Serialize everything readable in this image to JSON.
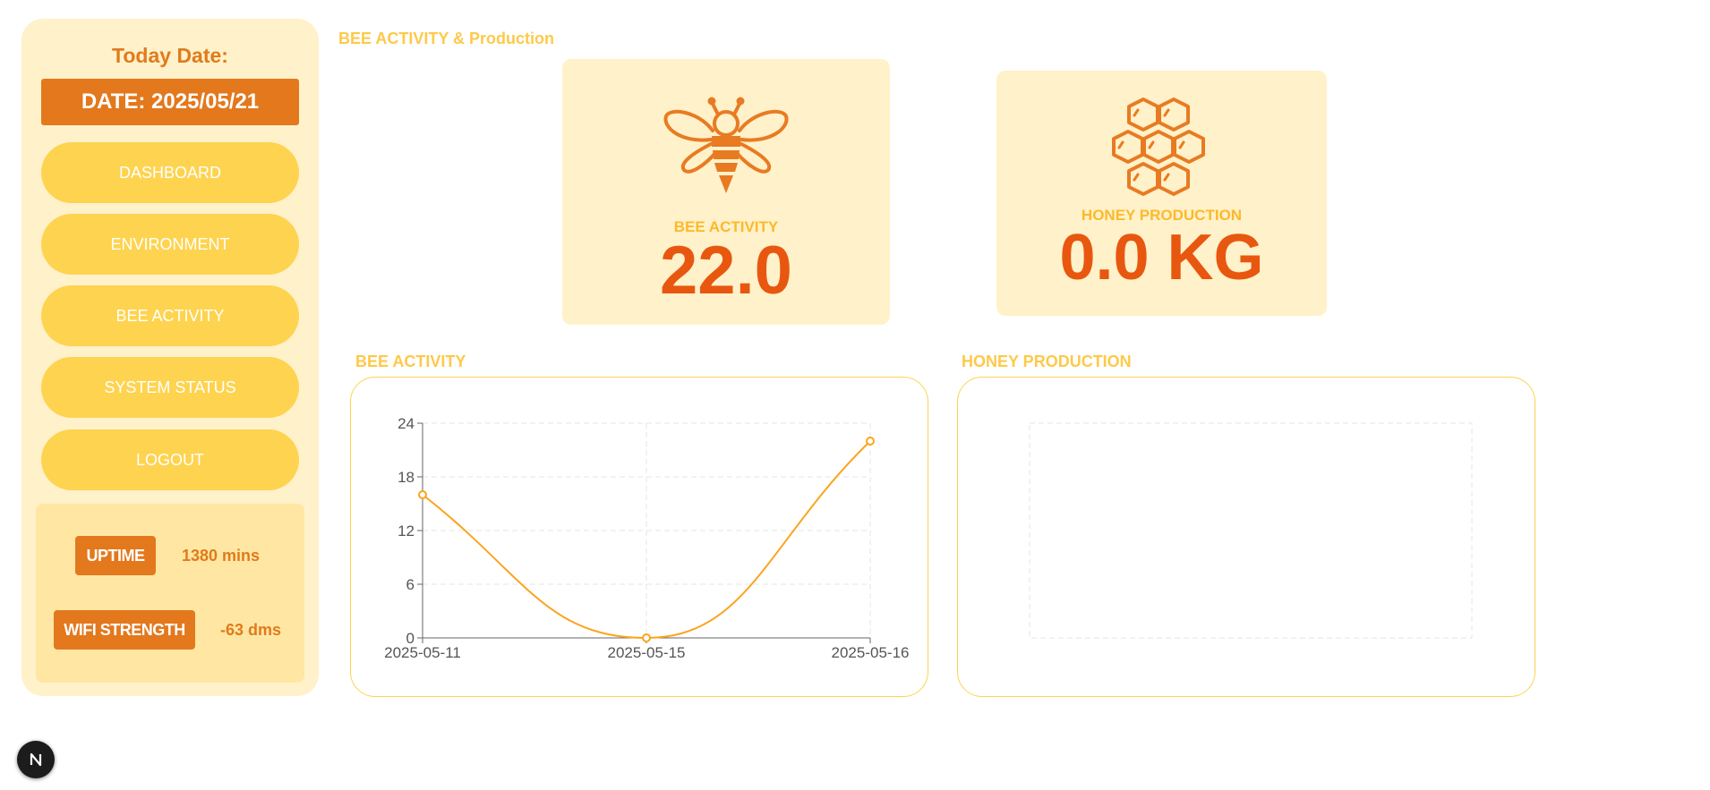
{
  "sidebar": {
    "today_label": "Today Date:",
    "date_text": "DATE: 2025/05/21",
    "nav": [
      "DASHBOARD",
      "ENVIRONMENT",
      "BEE ACTIVITY",
      "SYSTEM STATUS",
      "LOGOUT"
    ],
    "uptime_label": "UPTIME",
    "uptime_value": "1380 mins",
    "wifi_label": "WIFI STRENGTH",
    "wifi_value": "-63 dms"
  },
  "main": {
    "title": "BEE ACTIVITY & Production",
    "bee_card": {
      "label": "BEE ACTIVITY",
      "value": "22.0",
      "icon": "bee-icon"
    },
    "honey_card": {
      "label": "HONEY PRODUCTION",
      "value": "0.0 KG",
      "icon": "honeycomb-icon"
    },
    "bee_chart_title": "BEE ACTIVITY",
    "honey_chart_title": "HONEY PRODUCTION"
  },
  "colors": {
    "accent": "#e3781d",
    "nav": "#fed34f",
    "panel": "#fff1c9",
    "value": "#e8570f",
    "line": "#fba41c"
  },
  "chart_data": [
    {
      "type": "line",
      "x": [
        "2025-05-11",
        "2025-05-15",
        "2025-05-16"
      ],
      "values": [
        16,
        0,
        22
      ],
      "ylim": [
        0,
        24
      ],
      "yticks": [
        0,
        6,
        12,
        18,
        24
      ],
      "grid": true,
      "title": "",
      "xlabel": "",
      "ylabel": ""
    },
    {
      "type": "line",
      "x": [],
      "values": [],
      "grid": true
    }
  ]
}
